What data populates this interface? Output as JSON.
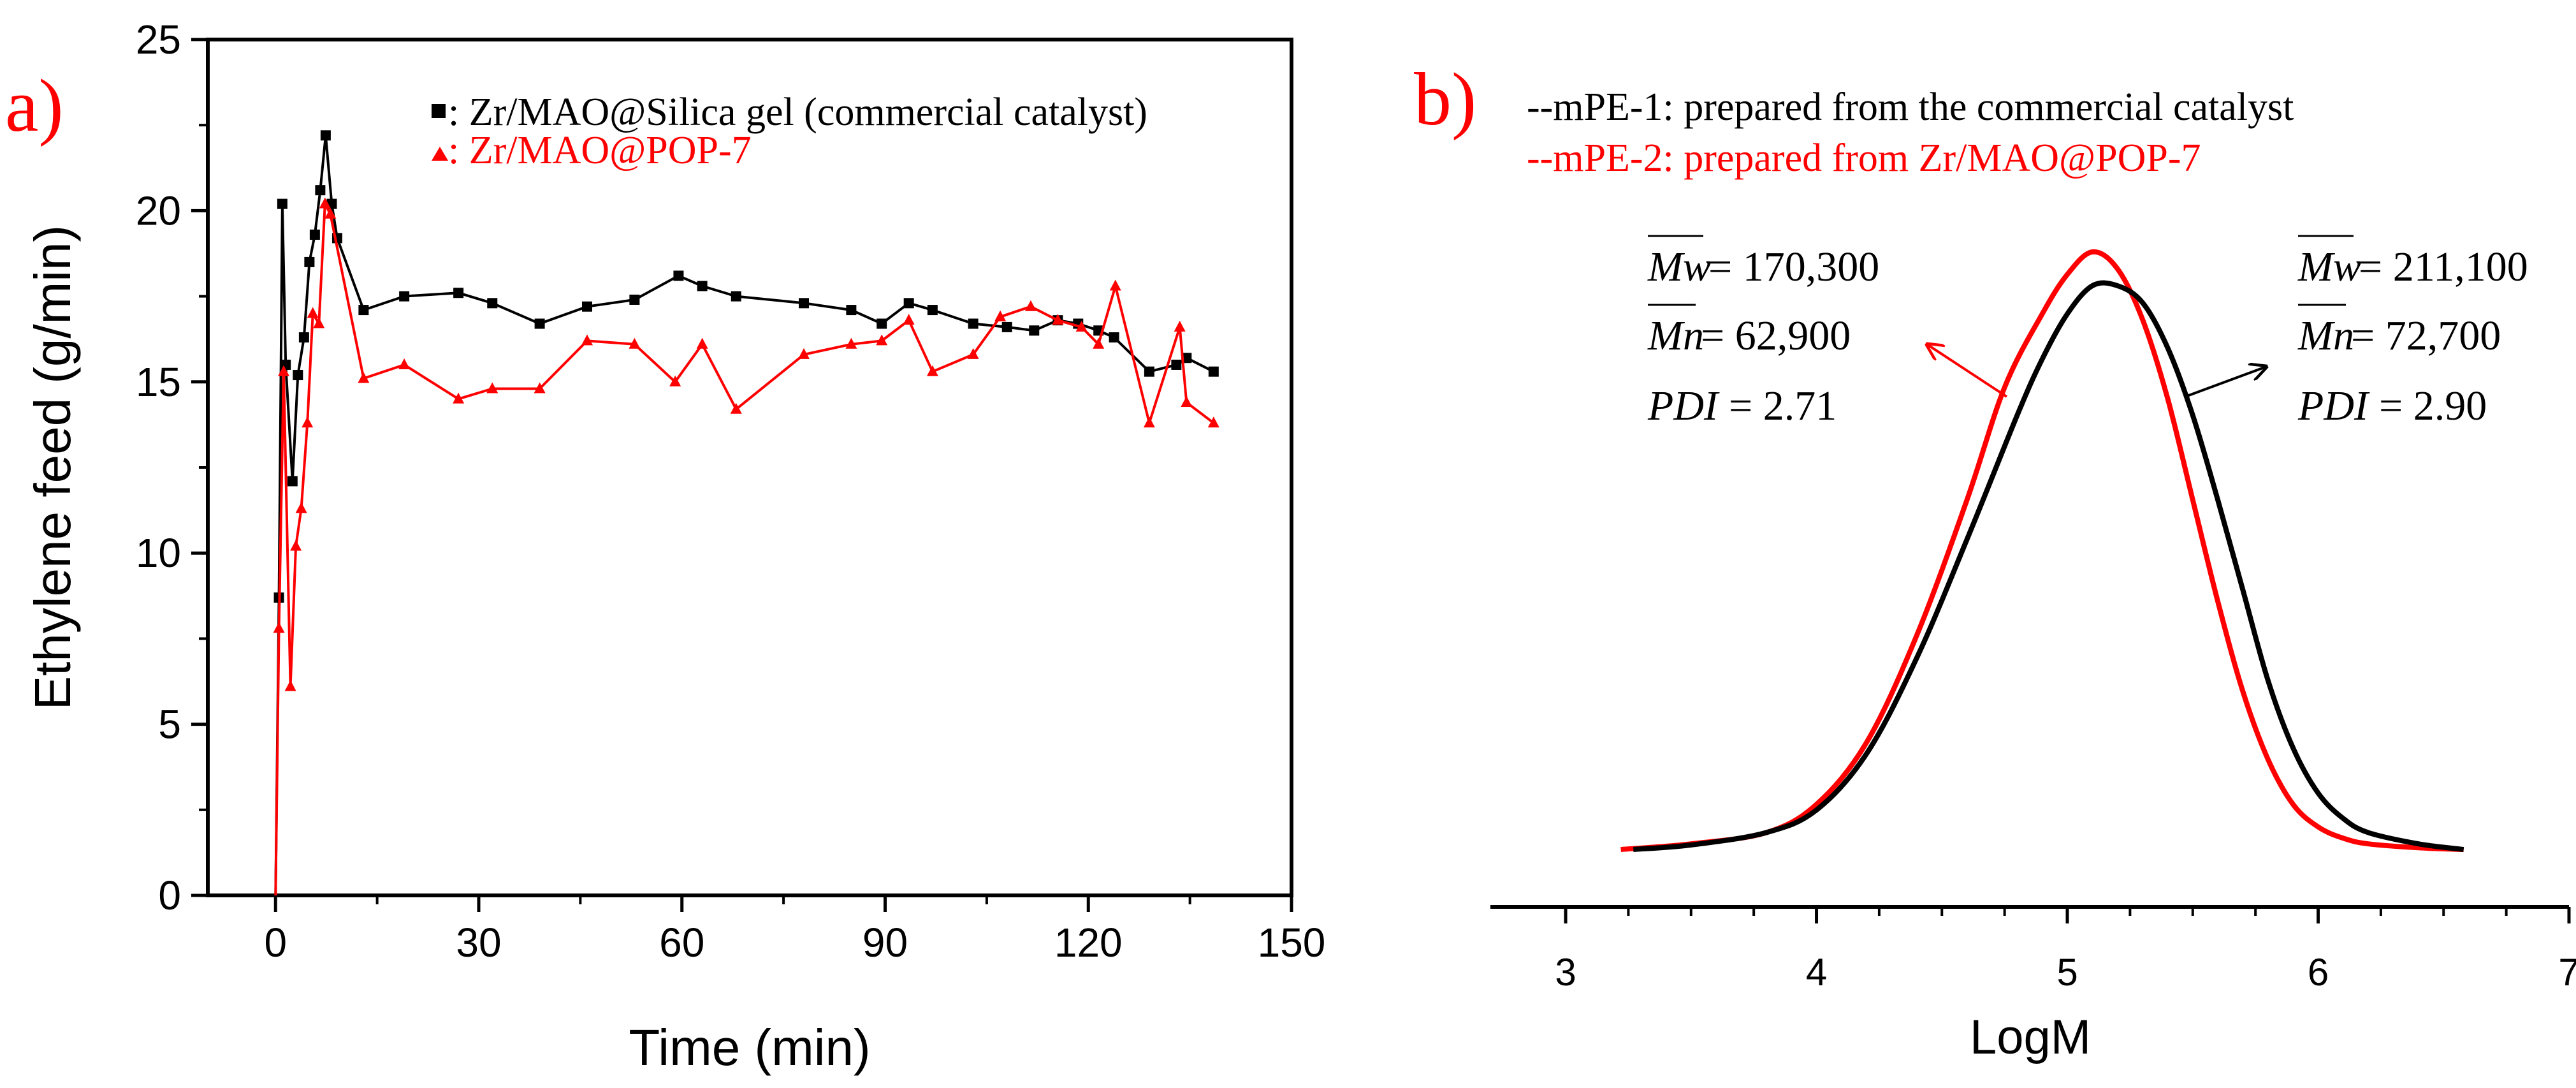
{
  "colors": {
    "black": "#000000",
    "red": "#ff0000",
    "background": "#ffffff"
  },
  "chart_data": [
    {
      "type": "line",
      "panel_label": "a)",
      "xlabel": "Time (min)",
      "ylabel": "Ethylene feed (g/min)",
      "xlim": [
        -10,
        150
      ],
      "ylim": [
        0,
        25
      ],
      "xticks": [
        0,
        30,
        60,
        90,
        120,
        150
      ],
      "yticks": [
        0,
        5,
        10,
        15,
        20,
        25
      ],
      "grid": false,
      "legend_position": "top-right",
      "series": [
        {
          "name": "Zr/MAO@Silica gel (commercial catalyst)",
          "legend_label": ": Zr/MAO@Silica gel (commercial catalyst)",
          "color": "#000000",
          "marker": "square",
          "x": [
            0,
            0.5,
            1,
            1.5,
            2.5,
            3.3,
            4.2,
            5,
            5.8,
            6.6,
            7.4,
            8.3,
            9.1,
            13,
            19,
            27,
            32,
            39,
            46,
            53,
            59.5,
            63,
            68,
            78,
            85,
            89.5,
            93.5,
            97,
            103,
            108,
            112,
            115.5,
            118.5,
            121.5,
            123.8,
            129,
            133,
            134.5,
            138.5
          ],
          "y": [
            0,
            8.7,
            20.2,
            15.5,
            12.1,
            15.2,
            16.3,
            18.5,
            19.3,
            20.6,
            22.2,
            20.2,
            19.2,
            17.1,
            17.5,
            17.6,
            17.3,
            16.7,
            17.2,
            17.4,
            18.1,
            17.8,
            17.5,
            17.3,
            17.1,
            16.7,
            17.3,
            17.1,
            16.7,
            16.6,
            16.5,
            16.8,
            16.7,
            16.5,
            16.3,
            15.3,
            15.5,
            15.7,
            15.3
          ]
        },
        {
          "name": "Zr/MAO@POP-7",
          "legend_label": ": Zr/MAO@POP-7",
          "color": "#ff0000",
          "marker": "triangle",
          "x": [
            0,
            0.5,
            1.2,
            2.2,
            3,
            3.8,
            4.7,
            5.5,
            6.4,
            7.3,
            8.1,
            13,
            19,
            27,
            32,
            39,
            46,
            53,
            59,
            63,
            68,
            78,
            85,
            89.5,
            93.5,
            97,
            103,
            107,
            111.5,
            115.5,
            119,
            121.5,
            124,
            129,
            133.5,
            134.5,
            138.5
          ],
          "y": [
            0,
            7.8,
            15.3,
            6.1,
            10.2,
            11.3,
            13.8,
            17,
            16.7,
            20.2,
            19.9,
            15.1,
            15.5,
            14.5,
            14.8,
            14.8,
            16.2,
            16.1,
            15,
            16.1,
            14.2,
            15.8,
            16.1,
            16.2,
            16.8,
            15.3,
            15.8,
            16.9,
            17.2,
            16.8,
            16.6,
            16.1,
            17.8,
            13.8,
            16.6,
            14.4,
            13.8
          ]
        }
      ]
    },
    {
      "type": "line",
      "panel_label": "b)",
      "xlabel": "LogM",
      "ylabel": "",
      "xlim": [
        2.7,
        7.0
      ],
      "ylim": [
        -0.03,
        1.2
      ],
      "xticks": [
        3,
        4,
        5,
        6,
        7
      ],
      "yticks": [],
      "grid": false,
      "legend_position": "top-left",
      "legend": [
        {
          "text": "--mPE-1: prepared from the commercial catalyst",
          "color": "#000000"
        },
        {
          "text": "--mPE-2: prepared from Zr/MAO@POP-7",
          "color": "#ff0000"
        }
      ],
      "series": [
        {
          "name": "mPE-1",
          "color": "#000000",
          "x": [
            3.27,
            3.5,
            3.8,
            4.0,
            4.2,
            4.4,
            4.6,
            4.8,
            4.9,
            5.0,
            5.1,
            5.2,
            5.3,
            5.4,
            5.5,
            5.6,
            5.7,
            5.8,
            5.9,
            6.0,
            6.1,
            6.2,
            6.4,
            6.58
          ],
          "y": [
            0.0,
            0.008,
            0.03,
            0.07,
            0.17,
            0.34,
            0.55,
            0.77,
            0.87,
            0.95,
            1.0,
            1.0,
            0.97,
            0.89,
            0.77,
            0.62,
            0.46,
            0.3,
            0.18,
            0.1,
            0.055,
            0.03,
            0.01,
            0.0
          ]
        },
        {
          "name": "mPE-2",
          "color": "#ff0000",
          "x": [
            3.22,
            3.5,
            3.8,
            4.0,
            4.2,
            4.4,
            4.6,
            4.75,
            4.9,
            5.0,
            5.1,
            5.2,
            5.3,
            5.4,
            5.5,
            5.6,
            5.7,
            5.8,
            5.9,
            6.0,
            6.1,
            6.2,
            6.4,
            6.58
          ],
          "y": [
            0.0,
            0.01,
            0.03,
            0.08,
            0.19,
            0.38,
            0.62,
            0.82,
            0.95,
            1.02,
            1.06,
            1.03,
            0.94,
            0.8,
            0.62,
            0.44,
            0.28,
            0.16,
            0.08,
            0.04,
            0.02,
            0.01,
            0.003,
            0.0
          ]
        }
      ],
      "annotations": [
        {
          "for_series": "mPE-2",
          "mw_symbol": "Mw",
          "mw_value": "= 170,300",
          "mn_symbol": "Mn",
          "mn_value": "= 62,900",
          "pdi_symbol": "PDI",
          "pdi_value": "= 2.71",
          "color": "#000000",
          "arrow_color": "#ff0000"
        },
        {
          "for_series": "mPE-1",
          "mw_symbol": "Mw",
          "mw_value": "= 211,100",
          "mn_symbol": "Mn",
          "mn_value": "= 72,700",
          "pdi_symbol": "PDI",
          "pdi_value": "= 2.90",
          "color": "#000000",
          "arrow_color": "#000000"
        }
      ]
    }
  ]
}
